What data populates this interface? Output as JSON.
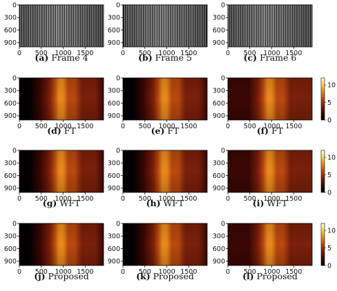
{
  "rows": [
    {
      "kind": "fringe",
      "panels": [
        {
          "letter": "(a)",
          "label": "Frame 4"
        },
        {
          "letter": "(b)",
          "label": "Frame 5"
        },
        {
          "letter": "(c)",
          "label": "Frame 6"
        }
      ],
      "colorbar": null
    },
    {
      "kind": "heat",
      "panels": [
        {
          "letter": "(d)",
          "label": "FT"
        },
        {
          "letter": "(e)",
          "label": "FT"
        },
        {
          "letter": "(f)",
          "label": "FT"
        }
      ],
      "colorbar": {
        "ticks": [
          "10",
          "5",
          "0"
        ]
      }
    },
    {
      "kind": "heat",
      "panels": [
        {
          "letter": "(g)",
          "label": "WFT"
        },
        {
          "letter": "(h)",
          "label": "WFT"
        },
        {
          "letter": "(i)",
          "label": "WFT"
        }
      ],
      "colorbar": {
        "ticks": [
          "10",
          "5",
          "0"
        ]
      }
    },
    {
      "kind": "heat",
      "panels": [
        {
          "letter": "(j)",
          "label": "Proposed"
        },
        {
          "letter": "(k)",
          "label": "Proposed"
        },
        {
          "letter": "(l)",
          "label": "Proposed"
        }
      ],
      "colorbar": {
        "ticks": [
          "10",
          "5",
          "0"
        ]
      }
    }
  ],
  "x_ticks": [
    "0",
    "500",
    "1000",
    "1500"
  ],
  "y_ticks": [
    "0",
    "300",
    "600",
    "900"
  ],
  "x_tick_values": [
    0,
    500,
    1000,
    1500
  ],
  "y_tick_values": [
    0,
    300,
    600,
    900
  ],
  "image_extent": {
    "x": [
      0,
      1920
    ],
    "y": [
      0,
      1000
    ]
  },
  "colorbar_range": [
    0,
    12
  ],
  "colors": {
    "heat_stops": [
      "#000000",
      "#3a0703",
      "#7a1f0a",
      "#b8480f",
      "#e88a1c",
      "#ffd055",
      "#ffffe8"
    ],
    "fringe_light": "#dcdcdc",
    "fringe_dark": "#1a1a1a"
  }
}
